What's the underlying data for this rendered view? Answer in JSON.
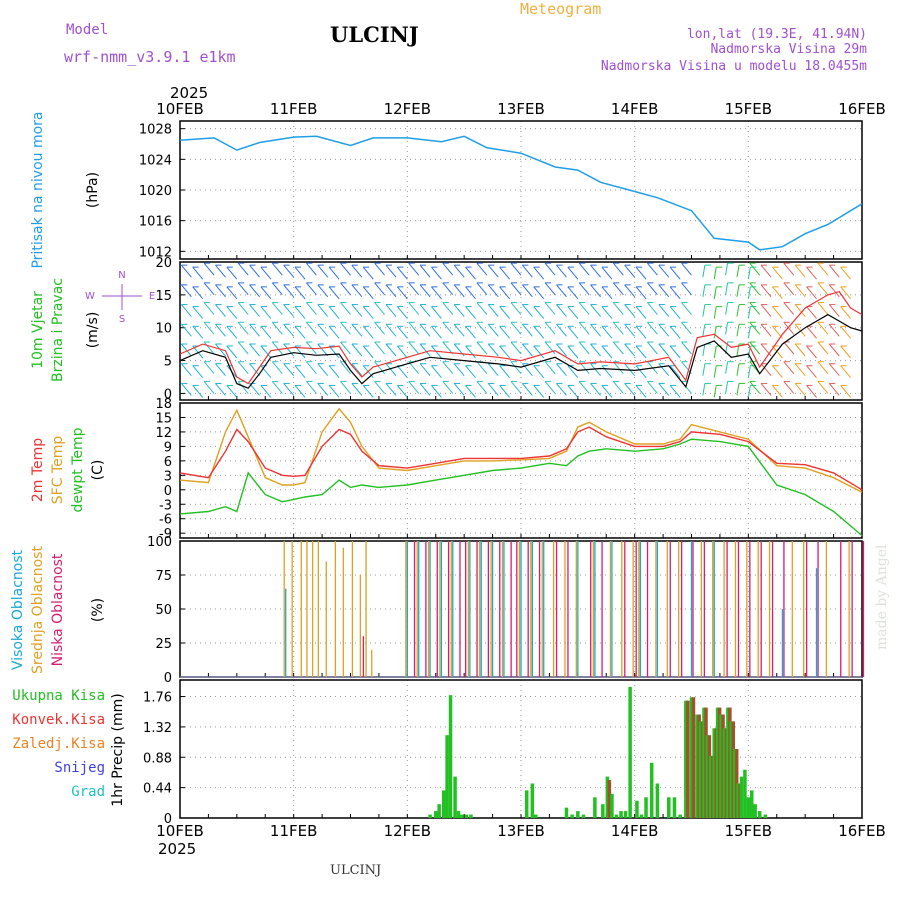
{
  "header": {
    "model_label": "Model",
    "model_name": "wrf-nmm_v3.9.1 e1km",
    "station": "ULCINJ",
    "product": "Meteogram",
    "coords": "lon,lat (19.3E, 41.94N)",
    "elevation": "Nadmorska Visina 29m",
    "model_elevation": "Nadmorska Visina u modelu 18.0455m",
    "footer_station": "ULCINJ",
    "credit": "made by Angel"
  },
  "colors": {
    "pressure": "#1f9ee8",
    "wind_label": "#22c022",
    "temp2m": "#ee3333",
    "sfc_temp": "#e0a020",
    "dewpoint": "#22c022",
    "cloud_high": "#1aa8d8",
    "cloud_mid": "#e0a020",
    "cloud_low": "#d81c70",
    "rain_total": "#22c022",
    "rain_conv": "#ee3333",
    "freezing": "#f08020",
    "snow": "#4040e0",
    "hail": "#20c0c0",
    "header_purple": "#a050d0",
    "header_orange": "#f0b040"
  },
  "time_axis": {
    "year": "2025",
    "ticks": [
      "10FEB",
      "11FEB",
      "12FEB",
      "13FEB",
      "14FEB",
      "15FEB",
      "16FEB"
    ]
  },
  "chart_data": [
    {
      "type": "line",
      "panel": "pressure",
      "ylabel": "Pritisak na nivou mora",
      "units": "(hPa)",
      "ylim": [
        1011,
        1029
      ],
      "yticks": [
        "1028",
        "1024",
        "1020",
        "1016",
        "1012"
      ],
      "x_days": [
        0,
        0.3,
        0.5,
        0.7,
        1,
        1.2,
        1.5,
        1.7,
        2,
        2.3,
        2.5,
        2.7,
        3,
        3.3,
        3.5,
        3.7,
        4,
        4.2,
        4.5,
        4.7,
        5,
        5.1,
        5.3,
        5.5,
        5.7,
        6
      ],
      "series": [
        {
          "values": [
            1026.5,
            1026.8,
            1025.2,
            1026.2,
            1026.9,
            1027.0,
            1025.8,
            1026.8,
            1026.8,
            1026.3,
            1027.0,
            1025.5,
            1024.8,
            1023.0,
            1022.6,
            1021.0,
            1019.8,
            1019.0,
            1017.3,
            1013.7,
            1013.2,
            1012.2,
            1012.6,
            1014.3,
            1015.5,
            1018.2
          ]
        }
      ]
    },
    {
      "type": "line",
      "panel": "wind",
      "ylabel": [
        "10m Vjetar",
        "Brzina i Pravac"
      ],
      "units": "(m/s)",
      "compass": [
        "N",
        "E",
        "W",
        "S"
      ],
      "ylim": [
        -1,
        20
      ],
      "yticks": [
        "20",
        "15",
        "10",
        "5",
        "0"
      ],
      "x_days": [
        0,
        0.2,
        0.4,
        0.5,
        0.6,
        0.7,
        0.8,
        1,
        1.2,
        1.4,
        1.5,
        1.6,
        1.7,
        1.9,
        2.2,
        2.5,
        2.8,
        3,
        3.3,
        3.5,
        3.7,
        4,
        4.3,
        4.45,
        4.55,
        4.7,
        4.85,
        5,
        5.1,
        5.3,
        5.5,
        5.7,
        5.8,
        5.9,
        6
      ],
      "series": [
        {
          "name": "speed",
          "values": [
            5.0,
            6.5,
            5.5,
            1.5,
            0.8,
            3.0,
            5.5,
            6.2,
            5.8,
            6.0,
            3.5,
            1.5,
            3.0,
            4.0,
            5.5,
            5.0,
            4.5,
            4.0,
            5.5,
            3.5,
            3.8,
            3.5,
            4.2,
            1.0,
            7.0,
            8.0,
            5.5,
            6.0,
            3.0,
            7.5,
            10.0,
            12.0,
            11.0,
            10.0,
            9.5
          ]
        },
        {
          "name": "gust",
          "values": [
            6.0,
            7.5,
            6.5,
            2.5,
            1.5,
            4.0,
            6.5,
            7.0,
            6.8,
            7.2,
            4.5,
            2.5,
            4.0,
            5.0,
            6.5,
            6.0,
            5.5,
            5.0,
            6.5,
            4.5,
            4.8,
            4.5,
            5.5,
            2.0,
            8.5,
            9.0,
            7.0,
            7.5,
            4.0,
            9.0,
            13.0,
            15.0,
            15.5,
            13.0,
            12.0
          ]
        }
      ]
    },
    {
      "type": "line",
      "panel": "temperature",
      "ylabel": [
        "2m Temp",
        "SFC Temp",
        "dewpt Temp"
      ],
      "units": "(C)",
      "ylim": [
        -10,
        18
      ],
      "yticks": [
        "18",
        "15",
        "12",
        "9",
        "6",
        "3",
        "0",
        "-3",
        "-6",
        "-9"
      ],
      "x_days": [
        0,
        0.25,
        0.4,
        0.5,
        0.6,
        0.75,
        0.9,
        1,
        1.1,
        1.25,
        1.4,
        1.5,
        1.6,
        1.75,
        2,
        2.25,
        2.5,
        2.75,
        3,
        3.25,
        3.4,
        3.5,
        3.6,
        3.75,
        4,
        4.25,
        4.4,
        4.5,
        4.75,
        5,
        5.25,
        5.5,
        5.75,
        6
      ],
      "series": [
        {
          "name": "2m Temp",
          "values": [
            3.5,
            2.5,
            8.0,
            12.5,
            10.0,
            4.5,
            3.0,
            2.8,
            3.0,
            9.0,
            12.5,
            11.5,
            8.0,
            5.0,
            4.5,
            5.5,
            6.5,
            6.5,
            6.5,
            7.0,
            8.5,
            12.0,
            13.0,
            11.0,
            9.0,
            9.0,
            10.0,
            12.0,
            11.5,
            10.0,
            5.5,
            5.2,
            3.5,
            0.0
          ]
        },
        {
          "name": "SFC Temp",
          "values": [
            2.0,
            1.5,
            12.0,
            16.5,
            11.0,
            2.5,
            1.0,
            1.0,
            1.5,
            12.0,
            16.8,
            14.0,
            9.0,
            4.5,
            4.0,
            5.0,
            6.0,
            6.0,
            6.2,
            6.5,
            8.0,
            13.0,
            14.0,
            12.0,
            9.5,
            9.5,
            10.5,
            13.5,
            12.0,
            10.5,
            5.0,
            4.5,
            2.5,
            -0.5
          ]
        },
        {
          "name": "dewpt Temp",
          "values": [
            -5.0,
            -4.5,
            -3.5,
            -4.5,
            3.5,
            -1.0,
            -2.5,
            -2.0,
            -1.5,
            -1.0,
            2.0,
            0.5,
            1.0,
            0.5,
            1.0,
            2.0,
            3.0,
            4.0,
            4.5,
            5.5,
            5.0,
            7.0,
            8.0,
            8.5,
            8.0,
            8.5,
            9.5,
            10.5,
            10.0,
            9.0,
            1.0,
            -1.0,
            -4.5,
            -9.5
          ]
        }
      ]
    },
    {
      "type": "bar",
      "panel": "cloud",
      "ylabel": [
        "Visoka Oblacnost",
        "Srednja Oblacnost",
        "Niska Oblacnost"
      ],
      "units": "(%)",
      "ylim": [
        0,
        100
      ],
      "yticks": [
        "100",
        "75",
        "50",
        "25",
        "0"
      ],
      "x_days": [
        0.93,
        1.0,
        1.08,
        1.13,
        1.18,
        1.23,
        1.3,
        1.38,
        1.45,
        1.53,
        1.6,
        1.65,
        1.7,
        2.0,
        2.05,
        2.1,
        2.15,
        2.2,
        2.25,
        2.3,
        2.35,
        2.4,
        2.45,
        2.5,
        2.55,
        2.6,
        2.65,
        2.7,
        2.75,
        2.8,
        2.85,
        2.9,
        2.95,
        3.0,
        3.05,
        3.1,
        3.15,
        3.2,
        3.3,
        3.4,
        3.5,
        3.6,
        3.65,
        3.7,
        3.8,
        3.9,
        4.0,
        4.05,
        4.1,
        4.2,
        4.3,
        4.4,
        4.5,
        4.6,
        4.7,
        4.8,
        4.9,
        5.0,
        5.1,
        5.2,
        5.3,
        5.4,
        5.5,
        5.6,
        5.7,
        5.8,
        5.9,
        6.0
      ],
      "series": [
        {
          "name": "Niska Oblacnost",
          "values": [
            0,
            0,
            0,
            0,
            0,
            0,
            0,
            0,
            0,
            0,
            30,
            0,
            0,
            0,
            100,
            0,
            100,
            0,
            100,
            0,
            100,
            0,
            100,
            100,
            0,
            100,
            0,
            100,
            0,
            100,
            0,
            100,
            100,
            0,
            100,
            0,
            100,
            0,
            100,
            100,
            0,
            100,
            0,
            100,
            0,
            100,
            100,
            0,
            100,
            0,
            100,
            100,
            100,
            100,
            0,
            100,
            100,
            100,
            100,
            100,
            100,
            0,
            100,
            100,
            0,
            100,
            100,
            100
          ]
        },
        {
          "name": "Srednja Oblacnost",
          "values": [
            100,
            100,
            100,
            100,
            100,
            100,
            85,
            100,
            95,
            100,
            75,
            100,
            20,
            100,
            0,
            100,
            0,
            100,
            0,
            100,
            0,
            100,
            0,
            0,
            100,
            0,
            100,
            0,
            100,
            0,
            100,
            0,
            0,
            100,
            0,
            100,
            0,
            100,
            100,
            100,
            100,
            0,
            100,
            0,
            100,
            100,
            100,
            100,
            0,
            100,
            100,
            100,
            0,
            100,
            100,
            100,
            100,
            100,
            100,
            100,
            0,
            100,
            100,
            0,
            100,
            0,
            100,
            0
          ]
        },
        {
          "name": "Visoka Oblacnost",
          "values": [
            65,
            0,
            0,
            0,
            0,
            0,
            0,
            0,
            0,
            0,
            0,
            0,
            0,
            100,
            0,
            100,
            0,
            100,
            0,
            100,
            0,
            100,
            0,
            0,
            100,
            0,
            100,
            0,
            100,
            0,
            100,
            0,
            0,
            100,
            0,
            100,
            0,
            100,
            0,
            0,
            100,
            0,
            100,
            0,
            100,
            0,
            0,
            100,
            0,
            100,
            0,
            0,
            100,
            0,
            100,
            0,
            0,
            0,
            0,
            0,
            50,
            0,
            0,
            80,
            0,
            0,
            0,
            0
          ]
        }
      ]
    },
    {
      "type": "bar",
      "panel": "precipitation",
      "ylabel": [
        "Ukupna Kisa",
        "Konvek.Kisa",
        "Zaledj.Kisa",
        "Snijeg",
        "Grad"
      ],
      "units": "1hr Precip (mm)",
      "ylim": [
        0,
        2.0
      ],
      "yticks": [
        "1.76",
        "1.32",
        "0.88",
        "0.44",
        "0"
      ],
      "x_days": [
        2.2,
        2.25,
        2.28,
        2.32,
        2.35,
        2.38,
        2.42,
        2.45,
        2.48,
        2.52,
        2.56,
        3.05,
        3.1,
        3.13,
        3.4,
        3.45,
        3.5,
        3.55,
        3.65,
        3.72,
        3.76,
        3.8,
        3.84,
        3.88,
        3.92,
        3.96,
        4.02,
        4.06,
        4.1,
        4.15,
        4.2,
        4.3,
        4.35,
        4.4,
        4.45,
        4.5,
        4.55,
        4.58,
        4.61,
        4.64,
        4.67,
        4.7,
        4.73,
        4.76,
        4.79,
        4.82,
        4.85,
        4.88,
        4.91,
        4.94,
        4.97,
        5.0,
        5.03,
        5.06,
        5.1,
        5.15,
        5.2,
        5.25,
        5.3,
        5.35,
        5.4
      ],
      "series": [
        {
          "name": "Ukupna Kisa",
          "values": [
            0.05,
            0.1,
            0.2,
            0.4,
            1.2,
            1.78,
            0.6,
            0.1,
            0.05,
            0.05,
            0.05,
            0.4,
            0.5,
            0.05,
            0.15,
            0.05,
            0.1,
            0.05,
            0.3,
            0.2,
            0.6,
            0.35,
            0.05,
            0.1,
            0.1,
            1.9,
            0.25,
            0.05,
            0.3,
            0.8,
            0.5,
            0.3,
            0.3,
            0.05,
            1.7,
            1.75,
            1.5,
            1.4,
            1.6,
            1.2,
            0.9,
            1.3,
            1.6,
            1.5,
            1.3,
            1.6,
            1.4,
            1.0,
            0.5,
            0.6,
            0.7,
            0.3,
            0.4,
            0.2,
            0.1,
            0.05,
            0,
            0,
            0,
            0,
            0
          ]
        },
        {
          "name": "Konvek.Kisa",
          "values": [
            0,
            0,
            0,
            0,
            0,
            0,
            0,
            0,
            0,
            0,
            0,
            0,
            0,
            0,
            0,
            0,
            0,
            0,
            0,
            0,
            0.55,
            0,
            0,
            0,
            0,
            0,
            0,
            0,
            0,
            0,
            0,
            0,
            0,
            0,
            1.7,
            1.75,
            1.5,
            1.4,
            1.6,
            1.2,
            0.9,
            1.3,
            1.6,
            1.5,
            1.3,
            1.6,
            1.4,
            1.0,
            0.5,
            0,
            0,
            0,
            0,
            0,
            0,
            0,
            0,
            0,
            0,
            0,
            0
          ]
        }
      ]
    }
  ]
}
